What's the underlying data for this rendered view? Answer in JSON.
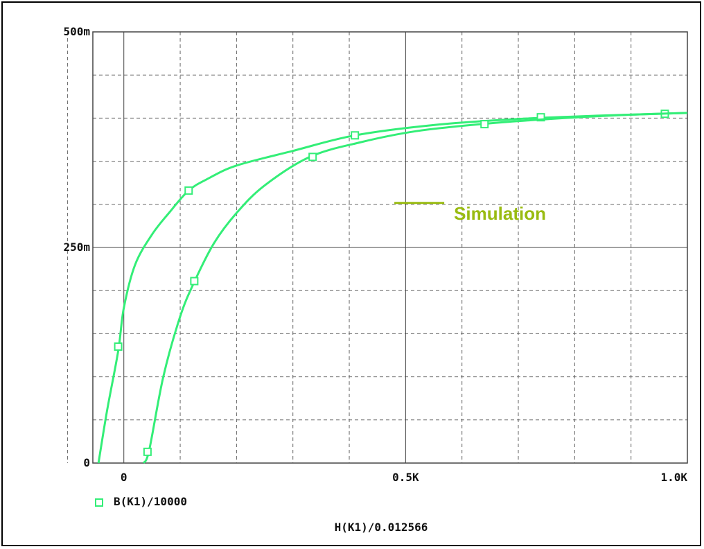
{
  "chart_data": {
    "type": "line",
    "xlabel": "H(K1)/0.012566",
    "ylabel": "",
    "xlim": [
      -0.055,
      1.0
    ],
    "ylim": [
      0,
      0.5
    ],
    "x_ticks": [
      {
        "value": 0,
        "label": "0"
      },
      {
        "value": 0.5,
        "label": "0.5K"
      },
      {
        "value": 1.0,
        "label": "1.0K"
      }
    ],
    "y_ticks": [
      {
        "value": 0,
        "label": "0"
      },
      {
        "value": 0.25,
        "label": "250m"
      },
      {
        "value": 0.5,
        "label": "500m"
      }
    ],
    "minor_grid_x": [
      -0.1,
      0.1,
      0.2,
      0.3,
      0.4,
      0.6,
      0.7,
      0.8,
      0.9
    ],
    "minor_grid_y": [
      0.05,
      0.1,
      0.15,
      0.2,
      0.3,
      0.35,
      0.4,
      0.45
    ],
    "grid": true,
    "legend": {
      "position": "bottom-left",
      "entries": [
        "B(K1)/10000"
      ]
    },
    "annotation": {
      "text": "Simulation",
      "color": "#99bb11",
      "anchor": [
        0.48,
        0.3
      ]
    },
    "series_color": "#33ee77",
    "series": [
      {
        "name": "B(K1)/10000",
        "x": [
          -0.045,
          -0.03,
          -0.01,
          0.0,
          0.02,
          0.05,
          0.08,
          0.115,
          0.15,
          0.2,
          0.3,
          0.41,
          0.55,
          0.7,
          0.85,
          1.0
        ],
        "y": [
          0.0,
          0.06,
          0.13,
          0.18,
          0.23,
          0.265,
          0.29,
          0.316,
          0.33,
          0.345,
          0.362,
          0.38,
          0.392,
          0.399,
          0.403,
          0.406
        ],
        "markers": [
          [
            -0.01,
            0.135
          ],
          [
            0.115,
            0.316
          ],
          [
            0.41,
            0.38
          ],
          [
            0.74,
            0.401
          ],
          [
            0.96,
            0.405
          ]
        ]
      },
      {
        "name": "B(K1)/10000",
        "x": [
          0.035,
          0.045,
          0.07,
          0.1,
          0.125,
          0.16,
          0.2,
          0.25,
          0.33,
          0.42,
          0.52,
          0.65,
          0.78,
          0.9,
          1.0
        ],
        "y": [
          0.0,
          0.015,
          0.1,
          0.17,
          0.21,
          0.255,
          0.29,
          0.322,
          0.355,
          0.372,
          0.385,
          0.394,
          0.4,
          0.404,
          0.406
        ],
        "markers": [
          [
            0.042,
            0.013
          ],
          [
            0.125,
            0.211
          ],
          [
            0.335,
            0.355
          ],
          [
            0.64,
            0.393
          ]
        ]
      }
    ]
  }
}
